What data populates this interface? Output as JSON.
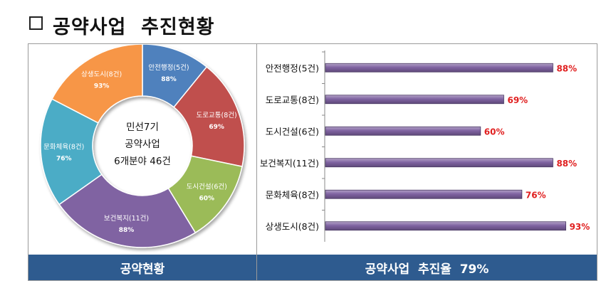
{
  "page": {
    "title": "공약사업  추진현황",
    "left_footer": "공약현황",
    "right_footer": "공약사업  추진율  79%"
  },
  "chart_data": [
    {
      "type": "pie",
      "subtype": "donut",
      "center_text": [
        "민선7기",
        "공약사업",
        "6개분야 46건"
      ],
      "slices": [
        {
          "name": "안전행정(5건)",
          "label": "88%",
          "value": 5,
          "color": "#4f81bd"
        },
        {
          "name": "도로교통(8건)",
          "label": "69%",
          "value": 8,
          "color": "#c0504d"
        },
        {
          "name": "도시건설(6건)",
          "label": "60%",
          "value": 6,
          "color": "#9bbb59"
        },
        {
          "name": "보건복지(11건)",
          "label": "88%",
          "value": 11,
          "color": "#8064a2"
        },
        {
          "name": "문화체육(8건)",
          "label": "76%",
          "value": 8,
          "color": "#4bacc6"
        },
        {
          "name": "상생도시(8건)",
          "label": "93%",
          "value": 8,
          "color": "#f79646"
        }
      ]
    },
    {
      "type": "bar",
      "orientation": "horizontal",
      "categories": [
        "안전행정(5건)",
        "도로교통(8건)",
        "도시건설(6건)",
        "보건복지(11건)",
        "문화체육(8건)",
        "상생도시(8건)"
      ],
      "values": [
        88,
        69,
        60,
        88,
        76,
        93
      ],
      "value_labels": [
        "88%",
        "69%",
        "60%",
        "88%",
        "76%",
        "93%"
      ],
      "xlim": [
        0,
        100
      ],
      "bar_color": "#8064a2",
      "label_color": "#e02020"
    }
  ]
}
